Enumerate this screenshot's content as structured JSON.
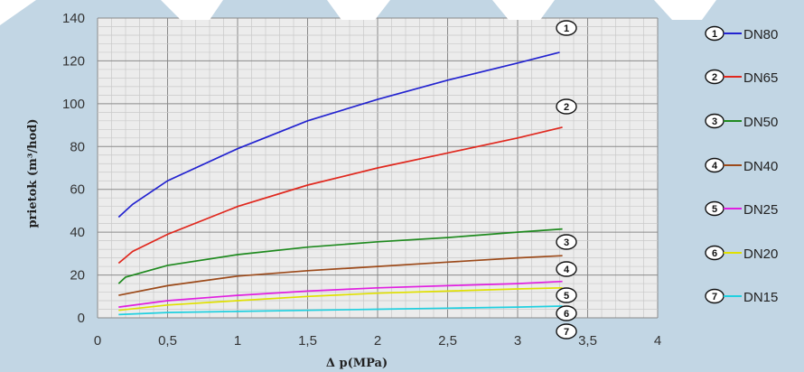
{
  "chart_data": {
    "type": "line",
    "title": "",
    "xlabel": "Δ p(MPa)",
    "ylabel": "prietok (m³/hod)",
    "xlim": [
      0,
      4
    ],
    "ylim": [
      0,
      140
    ],
    "xticks": [
      "0",
      "0,5",
      "1",
      "1,5",
      "2",
      "2,5",
      "3",
      "3,5",
      "4"
    ],
    "yticks": [
      "0",
      "20",
      "40",
      "60",
      "80",
      "100",
      "120",
      "140"
    ],
    "grid": true,
    "legend_position": "right",
    "series": [
      {
        "name": "DN80",
        "badge": "1",
        "color": "#2323d0",
        "x": [
          0.15,
          0.25,
          0.5,
          1,
          1.5,
          2,
          2.5,
          3,
          3.3
        ],
        "y": [
          47,
          53,
          64,
          79,
          92,
          102,
          111,
          119,
          124
        ]
      },
      {
        "name": "DN65",
        "badge": "2",
        "color": "#e0281e",
        "x": [
          0.15,
          0.25,
          0.5,
          1,
          1.5,
          2,
          2.5,
          3,
          3.32
        ],
        "y": [
          25.5,
          31,
          39,
          52,
          62,
          70,
          77,
          84,
          89
        ]
      },
      {
        "name": "DN50",
        "badge": "3",
        "color": "#1f8a1f",
        "x": [
          0.15,
          0.2,
          0.5,
          1,
          1.5,
          2,
          2.5,
          3,
          3.32
        ],
        "y": [
          16,
          19,
          24.5,
          29.5,
          33,
          35.5,
          37.5,
          40,
          41.5
        ]
      },
      {
        "name": "DN40",
        "badge": "4",
        "color": "#9c4a1a",
        "x": [
          0.15,
          0.5,
          1,
          1.5,
          2,
          2.5,
          3,
          3.32
        ],
        "y": [
          10.5,
          15,
          19.5,
          22,
          24,
          26,
          28,
          29
        ]
      },
      {
        "name": "DN25",
        "badge": "5",
        "color": "#e020e0",
        "x": [
          0.15,
          0.5,
          1,
          1.5,
          2,
          2.5,
          3,
          3.32
        ],
        "y": [
          5,
          8,
          10.5,
          12.5,
          14,
          15,
          16,
          17
        ]
      },
      {
        "name": "DN20",
        "badge": "6",
        "color": "#e0e000",
        "x": [
          0.15,
          0.5,
          1,
          1.5,
          2,
          2.5,
          3,
          3.32
        ],
        "y": [
          3.5,
          6,
          8,
          10,
          11.5,
          12.5,
          13.5,
          14
        ]
      },
      {
        "name": "DN15",
        "badge": "7",
        "color": "#20d0e0",
        "x": [
          0.15,
          0.5,
          1,
          1.5,
          2,
          2.5,
          3,
          3.32
        ],
        "y": [
          1.5,
          2.5,
          3,
          3.5,
          4,
          4.5,
          5,
          5.5
        ]
      }
    ]
  }
}
